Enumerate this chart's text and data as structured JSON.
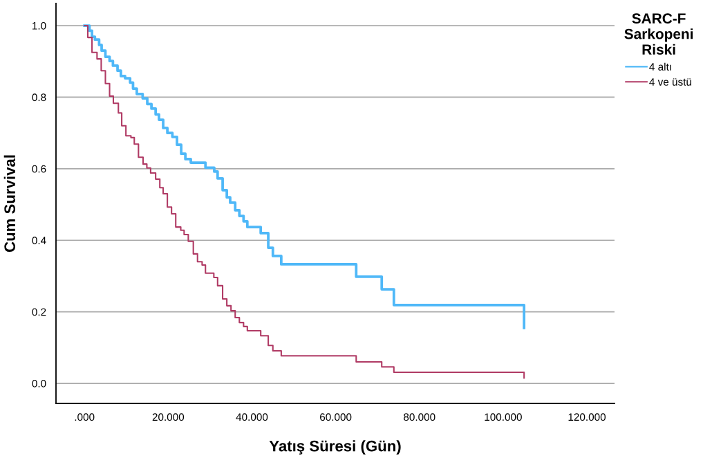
{
  "chart_data": {
    "type": "step",
    "xlabel": "Yatış Süresi (Gün)",
    "ylabel": "Cum Survival",
    "legend_title": "SARC-F\nSarkopeni\nRiski",
    "legend": "top right",
    "grid": "y",
    "xlim": [
      -6.8,
      126.6
    ],
    "ylim": [
      -0.056,
      1.062
    ],
    "xticks": [
      {
        "value": 0,
        "label": ".000"
      },
      {
        "value": 20,
        "label": "20.000"
      },
      {
        "value": 40,
        "label": "40.000"
      },
      {
        "value": 60,
        "label": "60.000"
      },
      {
        "value": 80,
        "label": "80.000"
      },
      {
        "value": 100,
        "label": "100.000"
      },
      {
        "value": 120,
        "label": "120.000"
      }
    ],
    "yticks": [
      {
        "value": 0,
        "label": "0.0"
      },
      {
        "value": 0.2,
        "label": "0.2"
      },
      {
        "value": 0.4,
        "label": "0.4"
      },
      {
        "value": 0.6,
        "label": "0.6"
      },
      {
        "value": 0.8,
        "label": "0.8"
      },
      {
        "value": 1,
        "label": "1.0"
      }
    ],
    "series": [
      {
        "name": "4 altı",
        "color": "#4fb8f8",
        "x": [
          0,
          1.2,
          1.8,
          2.5,
          3.5,
          4.1,
          5.0,
          6.0,
          6.8,
          7.9,
          8.7,
          9.7,
          10.9,
          11.6,
          12.5,
          13.9,
          15.0,
          16.0,
          17.0,
          17.8,
          18.8,
          19.8,
          21.0,
          22.1,
          23.1,
          24.1,
          25.4,
          28.9,
          31.0,
          31.8,
          33.0,
          34.0,
          34.8,
          36.0,
          37.0,
          38.0,
          38.9,
          42.1,
          43.9,
          45.0,
          47.0,
          64.9,
          71.0,
          73.9,
          105.0
        ],
        "values": [
          1.0,
          0.986,
          0.969,
          0.961,
          0.946,
          0.93,
          0.913,
          0.901,
          0.888,
          0.874,
          0.859,
          0.853,
          0.841,
          0.824,
          0.809,
          0.797,
          0.781,
          0.768,
          0.752,
          0.737,
          0.714,
          0.7,
          0.689,
          0.667,
          0.642,
          0.627,
          0.617,
          0.603,
          0.592,
          0.573,
          0.54,
          0.52,
          0.505,
          0.484,
          0.468,
          0.453,
          0.437,
          0.42,
          0.379,
          0.356,
          0.333,
          0.298,
          0.263,
          0.219,
          0.155
        ]
      },
      {
        "name": "4 ve üstü",
        "color": "#b03a64",
        "x": [
          0,
          0.8,
          1.8,
          3.0,
          4.0,
          5.0,
          6.0,
          6.9,
          8.1,
          8.9,
          9.9,
          11.1,
          11.9,
          12.9,
          14.0,
          14.9,
          15.8,
          17.0,
          18.0,
          18.8,
          19.8,
          20.8,
          21.8,
          23.0,
          23.8,
          24.8,
          26.0,
          27.0,
          28.1,
          28.9,
          30.9,
          31.8,
          33.0,
          34.0,
          35.0,
          36.0,
          37.0,
          38.0,
          38.9,
          42.1,
          43.9,
          45.0,
          47.0,
          64.9,
          71.0,
          73.9,
          105.0
        ],
        "values": [
          1.0,
          0.967,
          0.925,
          0.907,
          0.874,
          0.838,
          0.803,
          0.783,
          0.756,
          0.72,
          0.692,
          0.687,
          0.669,
          0.632,
          0.613,
          0.602,
          0.588,
          0.571,
          0.547,
          0.53,
          0.493,
          0.474,
          0.437,
          0.428,
          0.416,
          0.397,
          0.362,
          0.34,
          0.331,
          0.308,
          0.296,
          0.273,
          0.236,
          0.217,
          0.203,
          0.184,
          0.17,
          0.159,
          0.147,
          0.133,
          0.106,
          0.091,
          0.077,
          0.06,
          0.046,
          0.031,
          0.015
        ]
      }
    ]
  }
}
